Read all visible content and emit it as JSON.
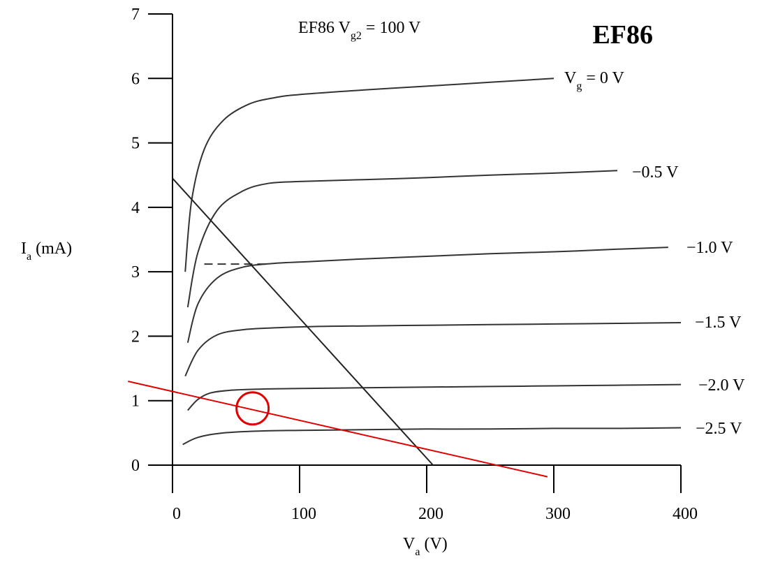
{
  "chart_data": {
    "type": "line",
    "title": "EF86",
    "subtitle": {
      "main": "EF86 V",
      "sub": "g2",
      "rest": " = 100 V"
    },
    "xlabel": {
      "main": "V",
      "sub": "a",
      "rest": " (V)"
    },
    "ylabel": {
      "main": "I",
      "sub": "a",
      "rest": " (mA)"
    },
    "xlim": [
      0,
      400
    ],
    "ylim": [
      0,
      7
    ],
    "x_ticks": [
      "0",
      "100",
      "200",
      "300",
      "400"
    ],
    "y_ticks": [
      "0",
      "1",
      "2",
      "3",
      "4",
      "5",
      "6",
      "7"
    ],
    "grid": false,
    "series": [
      {
        "name": "Vg=0 V",
        "label_main": "V",
        "label_sub": "g",
        "label_rest": " = 0 V",
        "x": [
          10,
          15,
          25,
          40,
          60,
          80,
          100,
          150,
          200,
          250,
          300
        ],
        "y": [
          3.0,
          4.1,
          4.9,
          5.35,
          5.6,
          5.7,
          5.75,
          5.82,
          5.88,
          5.94,
          6.0
        ]
      },
      {
        "name": "-0.5 V",
        "label_main": "−0.5 V",
        "x": [
          12,
          20,
          35,
          55,
          75,
          100,
          150,
          200,
          250,
          300,
          350
        ],
        "y": [
          2.45,
          3.3,
          3.95,
          4.25,
          4.37,
          4.4,
          4.43,
          4.46,
          4.5,
          4.53,
          4.57
        ]
      },
      {
        "name": "-1.0 V",
        "label_main": "−1.0 V",
        "x": [
          12,
          20,
          35,
          55,
          80,
          110,
          150,
          200,
          250,
          300,
          350,
          390
        ],
        "y": [
          1.9,
          2.5,
          2.9,
          3.07,
          3.13,
          3.16,
          3.2,
          3.24,
          3.28,
          3.31,
          3.35,
          3.38
        ]
      },
      {
        "name": "-1.5 V",
        "label_main": "−1.5 V",
        "x": [
          10,
          20,
          35,
          55,
          80,
          110,
          150,
          200,
          250,
          300,
          350,
          400
        ],
        "y": [
          1.38,
          1.78,
          2.02,
          2.1,
          2.13,
          2.15,
          2.16,
          2.17,
          2.18,
          2.19,
          2.2,
          2.21
        ]
      },
      {
        "name": "-2.0 V",
        "label_main": "−2.0 V",
        "x": [
          12,
          20,
          30,
          45,
          70,
          100,
          150,
          200,
          250,
          300,
          350,
          400
        ],
        "y": [
          0.85,
          1.02,
          1.12,
          1.16,
          1.18,
          1.19,
          1.2,
          1.21,
          1.22,
          1.23,
          1.24,
          1.25
        ]
      },
      {
        "name": "-2.5 V",
        "label_main": "−2.5 V",
        "x": [
          8,
          20,
          40,
          70,
          100,
          150,
          200,
          250,
          300,
          350,
          400
        ],
        "y": [
          0.32,
          0.43,
          0.5,
          0.53,
          0.54,
          0.55,
          0.56,
          0.56,
          0.57,
          0.57,
          0.58
        ]
      }
    ],
    "load_line": {
      "x": [
        0,
        205
      ],
      "y": [
        4.45,
        0
      ]
    },
    "dashed_line": {
      "x": [
        25,
        75
      ],
      "y": [
        3.12,
        3.12
      ]
    },
    "operating_load_line": {
      "x": [
        -35,
        295
      ],
      "y": [
        1.3,
        -0.18
      ]
    },
    "operating_point": {
      "x": 63,
      "y": 0.88
    },
    "colors": {
      "curves": "#333333",
      "operating": "#e00000",
      "axes": "#000000"
    }
  }
}
